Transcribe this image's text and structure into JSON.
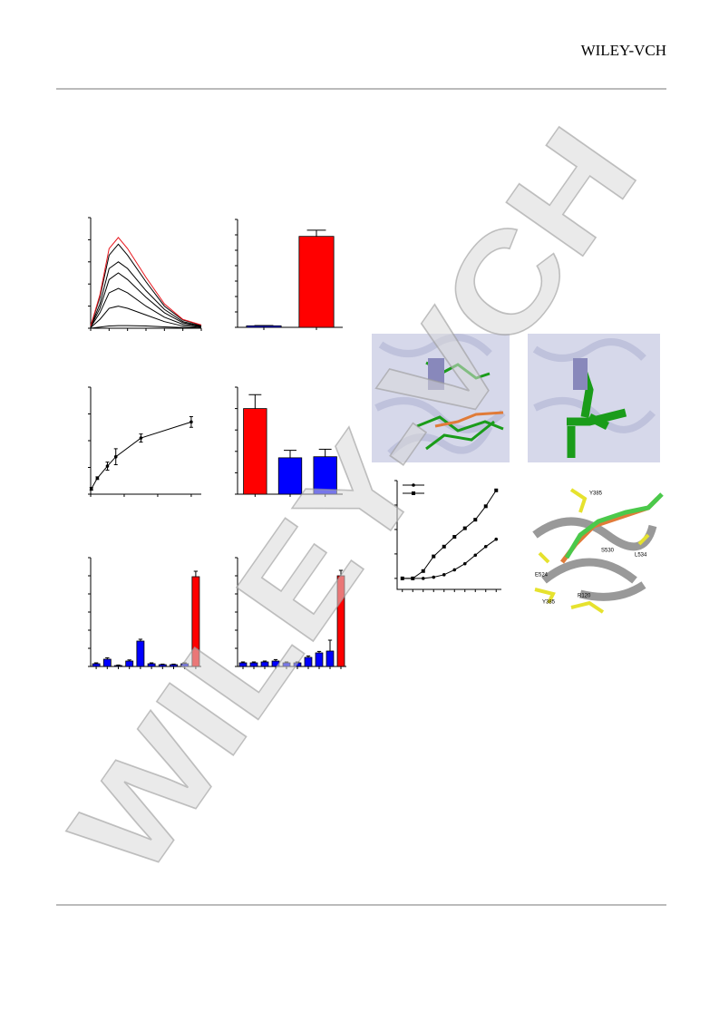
{
  "header": {
    "brand": "WILEY-VCH"
  },
  "watermark": "WILEY-VCH",
  "residue_labels": [
    "Y385",
    "S530",
    "L534",
    "E524",
    "Y385",
    "R120"
  ],
  "chart_data": [
    {
      "type": "line",
      "xlim": [
        0,
        6
      ],
      "ylim": [
        0,
        5
      ],
      "xticks": [
        0,
        1,
        2,
        3,
        4,
        5,
        6
      ],
      "yticks": [
        0,
        1,
        2,
        3,
        4,
        5
      ],
      "x": [
        0,
        0.5,
        1,
        1.5,
        2,
        3,
        4,
        5,
        6
      ],
      "series": [
        {
          "color": "#000000",
          "values": [
            0.0,
            0.05,
            0.1,
            0.12,
            0.12,
            0.1,
            0.06,
            0.03,
            0.01
          ]
        },
        {
          "color": "#000000",
          "values": [
            0.03,
            0.4,
            0.9,
            1.0,
            0.9,
            0.6,
            0.3,
            0.1,
            0.04
          ]
        },
        {
          "color": "#000000",
          "values": [
            0.05,
            0.7,
            1.6,
            1.8,
            1.6,
            1.0,
            0.5,
            0.18,
            0.07
          ]
        },
        {
          "color": "#000000",
          "values": [
            0.07,
            0.9,
            2.2,
            2.5,
            2.2,
            1.4,
            0.7,
            0.25,
            0.09
          ]
        },
        {
          "color": "#000000",
          "values": [
            0.08,
            1.1,
            2.7,
            3.0,
            2.7,
            1.7,
            0.85,
            0.3,
            0.11
          ]
        },
        {
          "color": "#000000",
          "values": [
            0.09,
            1.4,
            3.3,
            3.8,
            3.3,
            2.1,
            1.0,
            0.37,
            0.14
          ]
        },
        {
          "color": "#e8141b",
          "values": [
            0.1,
            1.5,
            3.6,
            4.1,
            3.6,
            2.3,
            1.1,
            0.4,
            0.15
          ]
        }
      ]
    },
    {
      "type": "bar",
      "ylim": [
        0,
        7
      ],
      "yticks": [
        0,
        1,
        2,
        3,
        4,
        5,
        6,
        7
      ],
      "values": [
        0.1,
        5.9
      ],
      "errors": [
        0.02,
        0.4
      ],
      "colors": [
        "#0000ff",
        "#ff0000"
      ]
    },
    {
      "type": "line",
      "xlim": [
        0,
        3.3
      ],
      "ylim": [
        0,
        4
      ],
      "xticks": [
        0,
        1,
        2,
        3
      ],
      "yticks": [
        0,
        1,
        2,
        3,
        4
      ],
      "x": [
        0.02,
        0.2,
        0.5,
        0.75,
        1.5,
        3.0
      ],
      "series": [
        {
          "color": "#000000",
          "marker": "circle",
          "values": [
            0.2,
            0.6,
            1.05,
            1.4,
            2.1,
            2.7
          ],
          "errors": [
            0.05,
            0.05,
            0.15,
            0.3,
            0.15,
            0.2
          ]
        }
      ]
    },
    {
      "type": "bar",
      "ylim": [
        0,
        5
      ],
      "yticks": [
        0,
        1,
        2,
        3,
        4,
        5
      ],
      "values": [
        4.0,
        1.7,
        1.75
      ],
      "errors": [
        0.65,
        0.35,
        0.35
      ],
      "colors": [
        "#ff0000",
        "#0000ff",
        "#0000ff"
      ]
    },
    {
      "type": "bar",
      "ylim": [
        0,
        6
      ],
      "yticks": [
        0,
        1,
        2,
        3,
        4,
        5,
        6
      ],
      "values": [
        0.15,
        0.4,
        0.05,
        0.3,
        1.4,
        0.15,
        0.1,
        0.1,
        0.15,
        4.95
      ],
      "errors": [
        0.05,
        0.08,
        0.03,
        0.06,
        0.1,
        0.05,
        0.03,
        0.03,
        0.05,
        0.3
      ],
      "colors": [
        "#0000ff",
        "#0000ff",
        "#0000ff",
        "#0000ff",
        "#0000ff",
        "#0000ff",
        "#0000ff",
        "#0000ff",
        "#0000ff",
        "#ff0000"
      ]
    },
    {
      "type": "bar",
      "ylim": [
        0,
        6
      ],
      "yticks": [
        0,
        1,
        2,
        3,
        4,
        5,
        6
      ],
      "values": [
        0.2,
        0.2,
        0.25,
        0.3,
        0.2,
        0.2,
        0.5,
        0.75,
        0.85,
        5.0
      ],
      "errors": [
        0.05,
        0.05,
        0.05,
        0.08,
        0.05,
        0.05,
        0.08,
        0.08,
        0.6,
        0.3
      ],
      "colors": [
        "#0000ff",
        "#0000ff",
        "#0000ff",
        "#0000ff",
        "#0000ff",
        "#0000ff",
        "#0000ff",
        "#0000ff",
        "#0000ff",
        "#ff0000"
      ]
    },
    {
      "type": "line",
      "xlim": [
        -0.5,
        9.5
      ],
      "ylim": [
        -0.45,
        4.0
      ],
      "xticks": [
        0,
        1,
        2,
        3,
        4,
        5,
        6,
        7,
        8,
        9
      ],
      "yticks": [
        0,
        1,
        2,
        3,
        4
      ],
      "x": [
        0,
        1,
        2,
        3,
        4,
        5,
        6,
        7,
        8,
        9
      ],
      "series": [
        {
          "color": "#000000",
          "marker": "circle",
          "values": [
            0,
            0,
            0,
            0.05,
            0.15,
            0.35,
            0.6,
            0.95,
            1.3,
            1.6
          ]
        },
        {
          "color": "#000000",
          "marker": "square",
          "values": [
            0,
            0,
            0.3,
            0.9,
            1.3,
            1.7,
            2.05,
            2.4,
            2.95,
            3.6
          ]
        }
      ]
    }
  ]
}
